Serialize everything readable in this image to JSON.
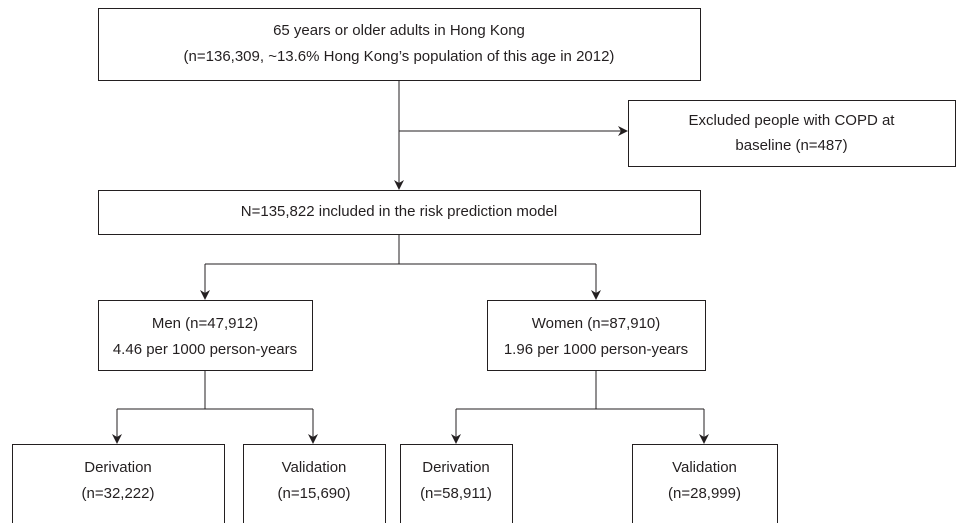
{
  "nodes": [
    {
      "lines": [
        "65 years or older adults in Hong Kong",
        "(n=136,309, ~13.6% Hong Kong’s  population of this age in 2012)"
      ]
    },
    {
      "lines": [
        "Excluded people with COPD at",
        "baseline (n=487)"
      ]
    },
    {
      "lines": [
        "N=135,822 included in the risk prediction model"
      ]
    },
    {
      "lines": [
        "Men (n=47,912)",
        "4.46 per 1000 person-years"
      ]
    },
    {
      "lines": [
        "Women (n=87,910)",
        "1.96 per 1000 person-years"
      ]
    },
    {
      "lines": [
        "Derivation",
        "(n=32,222)"
      ]
    },
    {
      "lines": [
        "Validation",
        "(n=15,690)"
      ]
    },
    {
      "lines": [
        "Derivation",
        "(n=58,911)"
      ]
    },
    {
      "lines": [
        "Validation",
        "(n=28,999)"
      ]
    }
  ]
}
